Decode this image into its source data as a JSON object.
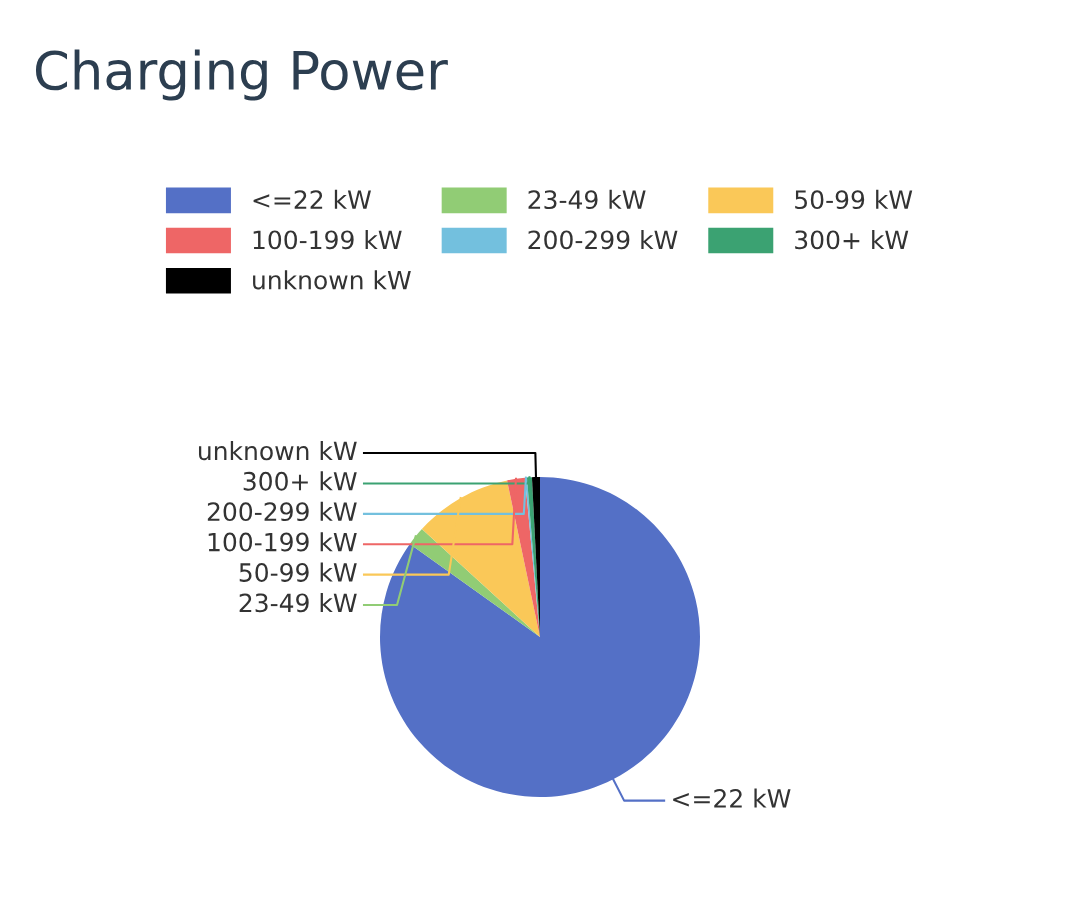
{
  "chart_data": {
    "type": "pie",
    "title": "Charging Power",
    "categories": [
      "<=22 kW",
      "23-49 kW",
      "50-99 kW",
      "100-199 kW",
      "200-299 kW",
      "300+ kW",
      "unknown kW"
    ],
    "values": [
      84.8,
      1.9,
      9.9,
      1.8,
      0.2,
      0.5,
      0.8
    ],
    "colors": [
      "#5470c6",
      "#91cc75",
      "#fac858",
      "#ee6666",
      "#73c0de",
      "#3ba272",
      "#000000"
    ],
    "legend": "top"
  }
}
